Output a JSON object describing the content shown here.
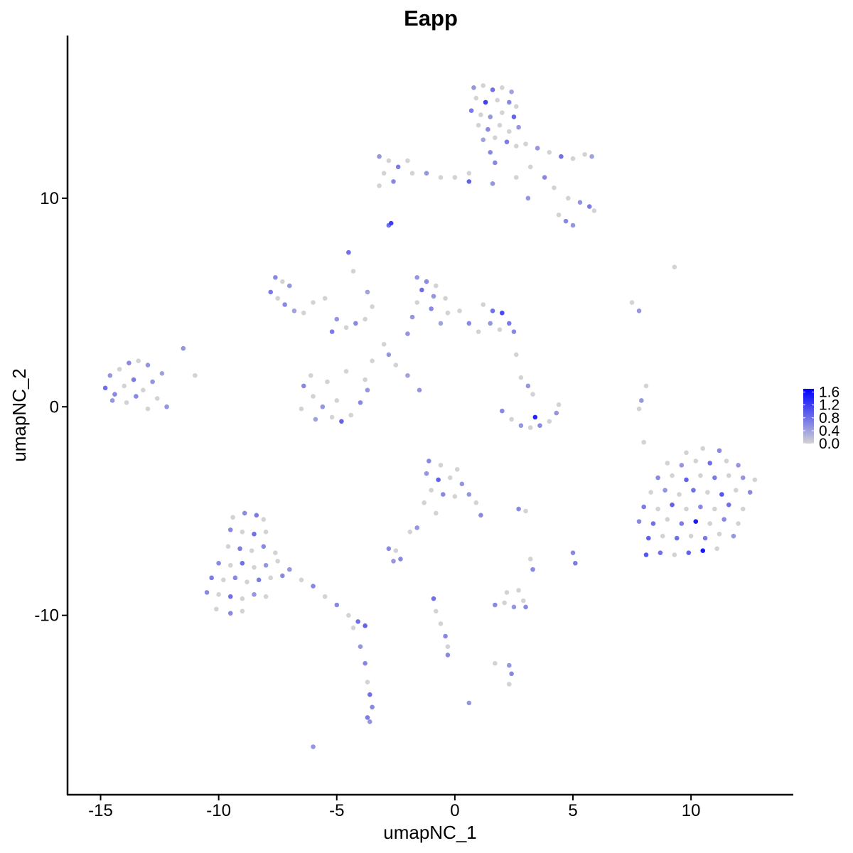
{
  "chart_data": {
    "type": "scatter",
    "title": "Eapp",
    "xlabel": "umapNC_1",
    "ylabel": "umapNC_2",
    "xlim": [
      -16.4,
      14.3
    ],
    "ylim": [
      -18.6,
      17.8
    ],
    "x_ticks": [
      -15,
      -10,
      -5,
      0,
      5,
      10
    ],
    "x_tick_labels": [
      "-15",
      "-10",
      "-5",
      "0",
      "5",
      "10"
    ],
    "y_ticks": [
      -10,
      0,
      10
    ],
    "y_tick_labels": [
      "-10",
      "0",
      "10"
    ],
    "grid": false,
    "legend": {
      "position": "right",
      "type": "colorbar",
      "tick_values": [
        0.0,
        0.4,
        0.8,
        1.2,
        1.6
      ],
      "tick_labels": [
        "0.0",
        "0.4",
        "0.8",
        "1.2",
        "1.6"
      ],
      "range": [
        0,
        1.7
      ],
      "low_color": "#D3D3D3",
      "high_color": "#0000FF"
    },
    "point_fields": [
      "umapNC_1",
      "umapNC_2",
      "expression"
    ],
    "points": [
      [
        0.8,
        15.3,
        0.5
      ],
      [
        1.2,
        15.4,
        0
      ],
      [
        1.6,
        15.2,
        0.8
      ],
      [
        2.0,
        15.3,
        0
      ],
      [
        2.4,
        15.1,
        0.4
      ],
      [
        0.9,
        14.8,
        0
      ],
      [
        1.3,
        14.6,
        1.2
      ],
      [
        1.8,
        14.7,
        0
      ],
      [
        2.3,
        14.6,
        0.6
      ],
      [
        2.6,
        14.4,
        0
      ],
      [
        0.7,
        14.2,
        0.7
      ],
      [
        1.1,
        14.0,
        0
      ],
      [
        1.5,
        13.9,
        0.5
      ],
      [
        2.0,
        14.1,
        0
      ],
      [
        2.5,
        13.9,
        0.9
      ],
      [
        1.0,
        13.5,
        0
      ],
      [
        1.4,
        13.3,
        0.6
      ],
      [
        1.9,
        13.5,
        0
      ],
      [
        2.3,
        13.2,
        0
      ],
      [
        2.7,
        13.4,
        0.5
      ],
      [
        1.2,
        12.8,
        0.4
      ],
      [
        1.7,
        12.9,
        0
      ],
      [
        2.2,
        12.7,
        0.7
      ],
      [
        1.5,
        12.2,
        0.6
      ],
      [
        2.6,
        12.5,
        0
      ],
      [
        3.0,
        12.6,
        0
      ],
      [
        3.5,
        12.4,
        0.5
      ],
      [
        4.0,
        12.2,
        0
      ],
      [
        4.5,
        12.0,
        0.8
      ],
      [
        5.0,
        11.9,
        0
      ],
      [
        5.5,
        12.1,
        0
      ],
      [
        5.8,
        12.0,
        0.4
      ],
      [
        3.2,
        11.5,
        0
      ],
      [
        3.8,
        11.0,
        0.6
      ],
      [
        4.2,
        10.5,
        0
      ],
      [
        4.8,
        10.0,
        0
      ],
      [
        5.3,
        9.8,
        0.5
      ],
      [
        5.7,
        9.6,
        0.7
      ],
      [
        5.9,
        9.4,
        0
      ],
      [
        4.4,
        9.2,
        0
      ],
      [
        4.7,
        8.9,
        0.6
      ],
      [
        5.0,
        8.7,
        0.5
      ],
      [
        3.1,
        10.0,
        0.5
      ],
      [
        2.6,
        11.0,
        0
      ],
      [
        1.7,
        11.7,
        0.6
      ],
      [
        -3.2,
        12.0,
        0.5
      ],
      [
        -2.8,
        11.8,
        0
      ],
      [
        -2.4,
        11.5,
        0.7
      ],
      [
        -2.0,
        11.8,
        0
      ],
      [
        -3.0,
        11.2,
        0
      ],
      [
        -2.6,
        10.8,
        0.6
      ],
      [
        -1.8,
        11.2,
        0
      ],
      [
        -1.2,
        11.2,
        0.5
      ],
      [
        -0.6,
        11.0,
        0
      ],
      [
        0,
        11.0,
        0
      ],
      [
        0.6,
        11.2,
        0
      ],
      [
        0.6,
        10.8,
        0.9
      ],
      [
        1.6,
        10.7,
        0.5
      ],
      [
        -3.2,
        10.6,
        0
      ],
      [
        -2.7,
        8.8,
        1.2
      ],
      [
        -2.8,
        8.7,
        0.8
      ],
      [
        -7.6,
        6.2,
        0.6
      ],
      [
        -7.3,
        6.0,
        0
      ],
      [
        -7.0,
        5.8,
        0.5
      ],
      [
        -7.8,
        5.5,
        0.7
      ],
      [
        -7.5,
        5.2,
        0
      ],
      [
        -7.2,
        4.9,
        0.6
      ],
      [
        -6.8,
        4.6,
        0.4
      ],
      [
        -6.4,
        4.5,
        0
      ],
      [
        -6.0,
        5.0,
        0
      ],
      [
        -5.5,
        5.2,
        0
      ],
      [
        -5.0,
        4.2,
        0.5
      ],
      [
        -4.6,
        3.8,
        0
      ],
      [
        -4.2,
        4.0,
        0.6
      ],
      [
        -3.8,
        4.2,
        0
      ],
      [
        -5.2,
        3.6,
        0.7
      ],
      [
        -4.5,
        7.4,
        0.8
      ],
      [
        -4.3,
        6.5,
        0
      ],
      [
        -3.7,
        5.5,
        0.4
      ],
      [
        -3.5,
        4.8,
        0
      ],
      [
        -3.0,
        3.0,
        0
      ],
      [
        -2.8,
        2.5,
        0.5
      ],
      [
        -2.5,
        2.0,
        0
      ],
      [
        -2.0,
        1.5,
        0.4
      ],
      [
        -1.5,
        0.8,
        0.5
      ],
      [
        -3.5,
        2.2,
        0
      ],
      [
        -6.4,
        1.0,
        0.6
      ],
      [
        -6.0,
        0.5,
        0
      ],
      [
        -5.6,
        0.0,
        0.5
      ],
      [
        -5.2,
        -0.5,
        0
      ],
      [
        -4.8,
        -0.7,
        0.9
      ],
      [
        -4.4,
        -0.4,
        0
      ],
      [
        -4.0,
        0.2,
        0.6
      ],
      [
        -3.7,
        0.8,
        0.5
      ],
      [
        -3.8,
        1.3,
        0
      ],
      [
        -6.5,
        -0.1,
        0
      ],
      [
        -5.9,
        -0.6,
        0.4
      ],
      [
        -5.0,
        0.3,
        0
      ],
      [
        -4.6,
        1.7,
        0
      ],
      [
        -5.4,
        1.2,
        0
      ],
      [
        -6.1,
        1.5,
        0
      ],
      [
        -1.6,
        6.2,
        0.5
      ],
      [
        -1.2,
        6.0,
        0.6
      ],
      [
        -0.8,
        5.8,
        0
      ],
      [
        -1.4,
        5.6,
        0.8
      ],
      [
        -0.9,
        5.3,
        0.5
      ],
      [
        -0.4,
        5.2,
        0
      ],
      [
        -1.6,
        5.0,
        0
      ],
      [
        -1.0,
        4.7,
        0.6
      ],
      [
        -0.3,
        4.5,
        0
      ],
      [
        0.2,
        4.6,
        0
      ],
      [
        -1.8,
        4.3,
        0.5
      ],
      [
        -0.6,
        4.0,
        0.4
      ],
      [
        0.6,
        4.0,
        0.6
      ],
      [
        1.2,
        4.9,
        0
      ],
      [
        1.6,
        4.6,
        0.8
      ],
      [
        2.0,
        4.5,
        1.1
      ],
      [
        2.3,
        4.0,
        0.7
      ],
      [
        1.5,
        4.0,
        0.5
      ],
      [
        1.9,
        3.7,
        0
      ],
      [
        2.5,
        3.6,
        0.6
      ],
      [
        1.0,
        3.6,
        0
      ],
      [
        -2.0,
        3.5,
        0.5
      ],
      [
        2.6,
        2.5,
        0
      ],
      [
        -14.6,
        1.5,
        0.5
      ],
      [
        -14.2,
        1.8,
        0
      ],
      [
        -13.8,
        2.1,
        0.6
      ],
      [
        -13.4,
        2.2,
        0
      ],
      [
        -13.0,
        2.0,
        0.5
      ],
      [
        -14.8,
        0.9,
        0.8
      ],
      [
        -14.4,
        0.6,
        0.6
      ],
      [
        -14.0,
        1.0,
        0
      ],
      [
        -13.6,
        1.3,
        0.7
      ],
      [
        -13.2,
        0.8,
        0
      ],
      [
        -12.8,
        1.2,
        0.5
      ],
      [
        -14.5,
        0.3,
        0.5
      ],
      [
        -13.9,
        0.2,
        0
      ],
      [
        -13.5,
        0.5,
        0.6
      ],
      [
        -12.6,
        0.4,
        0
      ],
      [
        -12.2,
        0.0,
        0.5
      ],
      [
        -13.0,
        -0.1,
        0
      ],
      [
        -12.4,
        1.6,
        0.4
      ],
      [
        -11.5,
        2.8,
        0.5
      ],
      [
        -11.0,
        1.5,
        0
      ],
      [
        2.8,
        1.4,
        0
      ],
      [
        3.1,
        1.0,
        0.5
      ],
      [
        3.3,
        0.6,
        0
      ],
      [
        2.0,
        -0.2,
        0.6
      ],
      [
        2.4,
        -0.6,
        0
      ],
      [
        2.8,
        -0.9,
        0.5
      ],
      [
        3.2,
        -1.0,
        0
      ],
      [
        3.6,
        -0.9,
        0.6
      ],
      [
        4.0,
        -0.7,
        0
      ],
      [
        4.3,
        -0.3,
        0.5
      ],
      [
        4.4,
        0.1,
        0
      ],
      [
        3.4,
        -0.5,
        1.4
      ],
      [
        9.3,
        6.7,
        0
      ],
      [
        7.5,
        5.0,
        0
      ],
      [
        7.8,
        4.6,
        0.5
      ],
      [
        8.1,
        1.0,
        0
      ],
      [
        7.9,
        0.3,
        0.5
      ],
      [
        7.8,
        -0.1,
        0
      ],
      [
        8.0,
        -1.7,
        0
      ],
      [
        9.8,
        -2.2,
        0
      ],
      [
        10.5,
        -2.0,
        0
      ],
      [
        11.2,
        -2.1,
        0.6
      ],
      [
        9.0,
        -2.7,
        0
      ],
      [
        9.6,
        -2.8,
        0.5
      ],
      [
        10.2,
        -2.6,
        0
      ],
      [
        10.8,
        -2.7,
        0.8
      ],
      [
        11.5,
        -2.6,
        0
      ],
      [
        12.0,
        -2.8,
        0.5
      ],
      [
        8.6,
        -3.4,
        0.6
      ],
      [
        9.2,
        -3.3,
        0
      ],
      [
        9.8,
        -3.5,
        0.9
      ],
      [
        10.4,
        -3.3,
        0
      ],
      [
        11.0,
        -3.4,
        0.7
      ],
      [
        11.6,
        -3.3,
        0
      ],
      [
        12.2,
        -3.4,
        0.5
      ],
      [
        12.7,
        -3.5,
        0
      ],
      [
        8.3,
        -4.1,
        0
      ],
      [
        8.9,
        -4.0,
        0.5
      ],
      [
        9.5,
        -4.2,
        0
      ],
      [
        10.1,
        -4.0,
        0.8
      ],
      [
        10.7,
        -4.1,
        0
      ],
      [
        11.3,
        -4.2,
        1.0
      ],
      [
        11.9,
        -4.0,
        0
      ],
      [
        12.5,
        -4.1,
        0.6
      ],
      [
        8.0,
        -4.8,
        0.7
      ],
      [
        8.6,
        -4.9,
        0
      ],
      [
        9.2,
        -4.7,
        0.9
      ],
      [
        9.8,
        -4.9,
        0
      ],
      [
        10.4,
        -4.8,
        0.6
      ],
      [
        11.0,
        -4.9,
        0
      ],
      [
        11.6,
        -4.7,
        0.8
      ],
      [
        12.2,
        -4.9,
        0
      ],
      [
        7.8,
        -5.5,
        0.6
      ],
      [
        8.4,
        -5.6,
        0.8
      ],
      [
        9.0,
        -5.4,
        0
      ],
      [
        9.6,
        -5.6,
        0.7
      ],
      [
        10.2,
        -5.5,
        1.5
      ],
      [
        10.8,
        -5.6,
        0
      ],
      [
        11.4,
        -5.4,
        0.6
      ],
      [
        12.0,
        -5.6,
        0
      ],
      [
        8.2,
        -6.3,
        0.9
      ],
      [
        8.8,
        -6.2,
        0
      ],
      [
        9.4,
        -6.3,
        0.8
      ],
      [
        10.0,
        -6.2,
        0
      ],
      [
        10.6,
        -6.3,
        0.7
      ],
      [
        11.2,
        -6.1,
        0
      ],
      [
        11.8,
        -6.2,
        0.5
      ],
      [
        8.1,
        -7.1,
        1.0
      ],
      [
        8.7,
        -7.0,
        0.8
      ],
      [
        9.3,
        -7.1,
        0
      ],
      [
        9.9,
        -7.0,
        0.9
      ],
      [
        10.5,
        -6.9,
        1.5
      ],
      [
        11.1,
        -6.8,
        0
      ],
      [
        -1.1,
        -2.6,
        0.6
      ],
      [
        -0.6,
        -2.8,
        0
      ],
      [
        0.1,
        -3.0,
        0
      ],
      [
        -1.2,
        -3.2,
        0.5
      ],
      [
        -0.7,
        -3.5,
        0.9
      ],
      [
        -0.2,
        -3.4,
        0
      ],
      [
        0.3,
        -3.7,
        0.5
      ],
      [
        -1.0,
        -4.0,
        0
      ],
      [
        -0.5,
        -4.2,
        0.6
      ],
      [
        0.0,
        -4.3,
        0
      ],
      [
        0.6,
        -4.2,
        0.5
      ],
      [
        0.9,
        -4.6,
        0
      ],
      [
        1.1,
        -5.2,
        0.6
      ],
      [
        -1.3,
        -4.6,
        0
      ],
      [
        -0.8,
        -5.1,
        0
      ],
      [
        -1.6,
        -5.8,
        0.5
      ],
      [
        -1.9,
        -6.0,
        0
      ],
      [
        2.7,
        -4.9,
        0.6
      ],
      [
        3.0,
        -5.0,
        0
      ],
      [
        5.0,
        -7.0,
        0.6
      ],
      [
        5.1,
        -7.5,
        0.7
      ],
      [
        3.2,
        -7.3,
        0
      ],
      [
        3.3,
        -7.8,
        0.6
      ],
      [
        -2.8,
        -6.8,
        0.6
      ],
      [
        -2.5,
        -6.9,
        0
      ],
      [
        -2.3,
        -7.3,
        0.6
      ],
      [
        -2.6,
        -7.4,
        0.5
      ],
      [
        1.7,
        -9.5,
        0.6
      ],
      [
        2.1,
        -9.4,
        0
      ],
      [
        2.5,
        -9.6,
        0.5
      ],
      [
        2.9,
        -9.3,
        0
      ],
      [
        3.0,
        -9.6,
        0.6
      ],
      [
        2.2,
        -8.9,
        0
      ],
      [
        2.7,
        -8.8,
        0
      ],
      [
        -0.9,
        -9.2,
        0.8
      ],
      [
        -0.8,
        -9.8,
        0
      ],
      [
        -0.6,
        -10.4,
        0
      ],
      [
        -0.4,
        -11.0,
        0.6
      ],
      [
        -0.3,
        -11.5,
        0
      ],
      [
        -0.3,
        -11.9,
        0.6
      ],
      [
        1.7,
        -12.3,
        0
      ],
      [
        2.3,
        -12.4,
        0.5
      ],
      [
        2.4,
        -12.8,
        0.6
      ],
      [
        2.3,
        -13.3,
        0
      ],
      [
        0.6,
        -14.2,
        0.5
      ],
      [
        -9.4,
        -5.3,
        0
      ],
      [
        -8.9,
        -5.1,
        0.6
      ],
      [
        -8.4,
        -5.2,
        0.7
      ],
      [
        -8.1,
        -5.4,
        0
      ],
      [
        -9.5,
        -5.9,
        0.6
      ],
      [
        -9.0,
        -6.0,
        0
      ],
      [
        -8.5,
        -6.1,
        0.8
      ],
      [
        -8.0,
        -6.0,
        0
      ],
      [
        -9.6,
        -6.7,
        0
      ],
      [
        -9.1,
        -6.8,
        0.7
      ],
      [
        -8.6,
        -6.9,
        0
      ],
      [
        -8.1,
        -6.7,
        0.6
      ],
      [
        -7.6,
        -7.0,
        0
      ],
      [
        -10.0,
        -7.5,
        0.6
      ],
      [
        -9.5,
        -7.6,
        0
      ],
      [
        -9.0,
        -7.5,
        0.8
      ],
      [
        -8.5,
        -7.7,
        0
      ],
      [
        -8.0,
        -7.6,
        0.5
      ],
      [
        -7.5,
        -7.4,
        0
      ],
      [
        -10.3,
        -8.2,
        0.7
      ],
      [
        -9.8,
        -8.3,
        0
      ],
      [
        -9.3,
        -8.2,
        0.6
      ],
      [
        -8.8,
        -8.4,
        0
      ],
      [
        -8.3,
        -8.3,
        0.7
      ],
      [
        -7.8,
        -8.2,
        0
      ],
      [
        -7.3,
        -8.1,
        0.6
      ],
      [
        -10.5,
        -8.9,
        0.6
      ],
      [
        -10.0,
        -9.0,
        0
      ],
      [
        -9.5,
        -9.1,
        0.8
      ],
      [
        -9.0,
        -9.2,
        0
      ],
      [
        -8.5,
        -9.0,
        0.5
      ],
      [
        -8.0,
        -9.1,
        0
      ],
      [
        -10.1,
        -9.7,
        0
      ],
      [
        -9.5,
        -9.9,
        0.6
      ],
      [
        -9.0,
        -9.8,
        0
      ],
      [
        -7.0,
        -7.8,
        0.5
      ],
      [
        -6.5,
        -8.3,
        0
      ],
      [
        -6.0,
        -8.6,
        0.6
      ],
      [
        -5.5,
        -9.1,
        0
      ],
      [
        -5.0,
        -9.5,
        0.6
      ],
      [
        -4.5,
        -10.0,
        0
      ],
      [
        -4.1,
        -10.3,
        0.8
      ],
      [
        -3.8,
        -10.5,
        0.9
      ],
      [
        -4.3,
        -10.6,
        0
      ],
      [
        -4.0,
        -11.5,
        0.5
      ],
      [
        -3.8,
        -12.3,
        0.6
      ],
      [
        -3.7,
        -13.2,
        0
      ],
      [
        -3.6,
        -13.8,
        0.8
      ],
      [
        -3.5,
        -14.4,
        0.6
      ],
      [
        -3.7,
        -14.9,
        0.7
      ],
      [
        -3.6,
        -15.1,
        0.5
      ],
      [
        -6.0,
        -16.3,
        0.5
      ]
    ]
  }
}
